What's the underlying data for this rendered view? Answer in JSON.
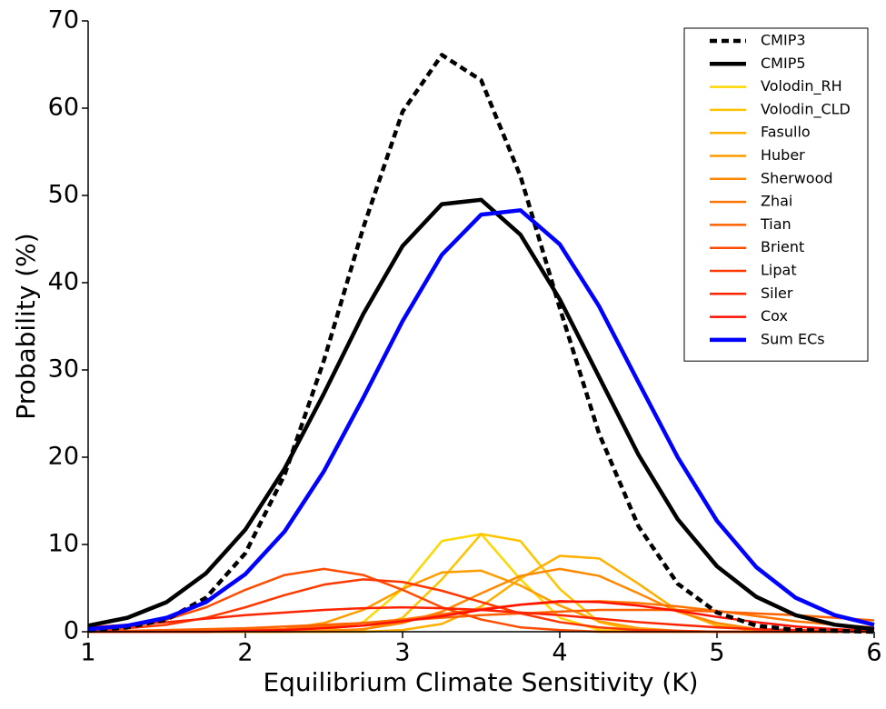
{
  "chart_data": {
    "type": "line",
    "xlabel": "Equilibrium Climate Sensitivity (K)",
    "ylabel": "Probability (%)",
    "x": [
      1,
      1.25,
      1.5,
      1.75,
      2,
      2.25,
      2.5,
      2.75,
      3,
      3.25,
      3.5,
      3.75,
      4,
      4.25,
      4.5,
      4.75,
      5,
      5.25,
      5.5,
      5.75,
      6
    ],
    "xlim": [
      1,
      6
    ],
    "xticks": [
      1,
      2,
      3,
      4,
      5,
      6
    ],
    "ylim": [
      0,
      70
    ],
    "yticks": [
      0,
      10,
      20,
      30,
      40,
      50,
      60,
      70
    ],
    "legend": "upper right",
    "series": [
      {
        "name": "CMIP3",
        "color": "#000000",
        "linestyle": "dashed",
        "values": [
          0.1,
          0.5,
          1.4,
          3.9,
          9.0,
          18.0,
          31.1,
          46.3,
          59.6,
          66.1,
          63.2,
          52.2,
          37.1,
          22.7,
          12.1,
          5.5,
          2.2,
          0.7,
          0.2,
          0.1,
          0.0
        ]
      },
      {
        "name": "CMIP5",
        "color": "#000000",
        "linestyle": "solid",
        "values": [
          0.7,
          1.6,
          3.4,
          6.7,
          11.7,
          18.7,
          27.3,
          36.4,
          44.2,
          49.0,
          49.5,
          45.5,
          38.1,
          29.2,
          20.3,
          12.9,
          7.5,
          4.0,
          1.9,
          0.8,
          0.3
        ]
      },
      {
        "name": "Volodin_RH",
        "color": "#ffd700",
        "linestyle": "solid",
        "values": [
          0,
          0,
          0,
          0,
          0,
          0,
          0.1,
          1.1,
          4.9,
          10.4,
          11.2,
          6.0,
          1.6,
          0.2,
          0,
          0,
          0,
          0,
          0,
          0,
          0
        ]
      },
      {
        "name": "Volodin_CLD",
        "color": "#ffc400",
        "linestyle": "solid",
        "values": [
          0,
          0,
          0,
          0,
          0,
          0,
          0,
          0.2,
          1.6,
          6.0,
          11.2,
          10.4,
          4.9,
          1.1,
          0.1,
          0,
          0,
          0,
          0,
          0,
          0
        ]
      },
      {
        "name": "Fasullo",
        "color": "#ffb000",
        "linestyle": "solid",
        "values": [
          0,
          0,
          0,
          0,
          0,
          0,
          0,
          0,
          0.2,
          0.9,
          2.9,
          6.1,
          8.7,
          8.4,
          5.5,
          2.4,
          0.7,
          0.1,
          0,
          0,
          0
        ]
      },
      {
        "name": "Huber",
        "color": "#ff9c00",
        "linestyle": "solid",
        "values": [
          0,
          0,
          0,
          0,
          0.1,
          0.3,
          1.0,
          2.5,
          4.9,
          6.8,
          7.0,
          5.3,
          3.0,
          1.2,
          0.4,
          0.1,
          0,
          0,
          0,
          0,
          0
        ]
      },
      {
        "name": "Sherwood",
        "color": "#ff8800",
        "linestyle": "solid",
        "values": [
          0,
          0,
          0,
          0,
          0,
          0,
          0.1,
          0.3,
          1.0,
          2.3,
          4.4,
          6.4,
          7.2,
          6.4,
          4.4,
          2.3,
          1.0,
          0.3,
          0.1,
          0,
          0
        ]
      },
      {
        "name": "Zhai",
        "color": "#ff7400",
        "linestyle": "solid",
        "values": [
          0,
          0,
          0,
          0.1,
          0.2,
          0.3,
          0.6,
          1.0,
          1.4,
          2.0,
          2.6,
          3.1,
          3.4,
          3.5,
          3.3,
          2.9,
          2.4,
          1.8,
          1.2,
          0.8,
          0.5
        ]
      },
      {
        "name": "Tian",
        "color": "#ff6000",
        "linestyle": "solid",
        "values": [
          0.1,
          0.1,
          0.2,
          0.3,
          0.4,
          0.6,
          0.8,
          1.0,
          1.3,
          1.6,
          1.9,
          2.1,
          2.3,
          2.5,
          2.5,
          2.5,
          2.3,
          2.1,
          1.9,
          1.6,
          1.3
        ]
      },
      {
        "name": "Brient",
        "color": "#ff4c00",
        "linestyle": "solid",
        "values": [
          0.2,
          0.5,
          1.4,
          2.8,
          4.8,
          6.5,
          7.2,
          6.5,
          4.8,
          2.8,
          1.4,
          0.5,
          0.2,
          0,
          0,
          0,
          0,
          0,
          0,
          0,
          0
        ]
      },
      {
        "name": "Lipat",
        "color": "#ff3800",
        "linestyle": "solid",
        "values": [
          0.1,
          0.4,
          0.8,
          1.6,
          2.8,
          4.2,
          5.4,
          6.0,
          5.7,
          4.7,
          3.4,
          2.1,
          1.1,
          0.5,
          0.2,
          0.1,
          0,
          0,
          0,
          0,
          0
        ]
      },
      {
        "name": "Siler",
        "color": "#ff2400",
        "linestyle": "solid",
        "values": [
          0.5,
          0.8,
          1.1,
          1.5,
          1.9,
          2.2,
          2.5,
          2.7,
          2.8,
          2.7,
          2.5,
          2.2,
          1.9,
          1.5,
          1.1,
          0.8,
          0.5,
          0.3,
          0.2,
          0.1,
          0.1
        ]
      },
      {
        "name": "Cox",
        "color": "#ff1000",
        "linestyle": "solid",
        "values": [
          0,
          0,
          0,
          0,
          0.1,
          0.2,
          0.4,
          0.7,
          1.2,
          1.8,
          2.5,
          3.1,
          3.5,
          3.4,
          3.0,
          2.4,
          1.7,
          1.1,
          0.6,
          0.3,
          0.1
        ]
      },
      {
        "name": "Sum ECs",
        "color": "#0000ff",
        "linestyle": "solid",
        "values": [
          0.3,
          0.7,
          1.6,
          3.4,
          6.6,
          11.5,
          18.4,
          26.8,
          35.6,
          43.2,
          47.8,
          48.3,
          44.4,
          37.3,
          28.6,
          20.0,
          12.7,
          7.4,
          3.9,
          1.9,
          0.8
        ]
      }
    ]
  }
}
